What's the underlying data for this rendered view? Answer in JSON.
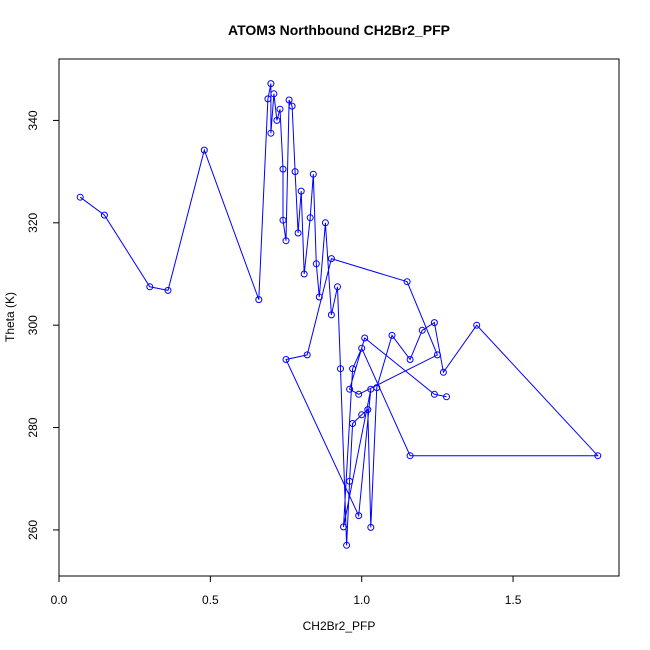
{
  "chart_data": {
    "type": "line",
    "title": "ATOM3 Northbound CH2Br2_PFP",
    "xlabel": "CH2Br2_PFP",
    "ylabel": "Theta (K)",
    "xlim": [
      0.0,
      1.85
    ],
    "ylim": [
      251,
      352
    ],
    "xticks": [
      "0.0",
      "0.5",
      "1.0",
      "1.5"
    ],
    "yticks": [
      "260",
      "280",
      "300",
      "320",
      "340"
    ],
    "series": [
      {
        "color": "#0000ff",
        "marker": "open-circle",
        "x": [
          0.07,
          0.15,
          0.3,
          0.36,
          0.48,
          0.66,
          0.69,
          0.7,
          0.7,
          0.71,
          0.72,
          0.73,
          0.74,
          0.74,
          0.75,
          0.76,
          0.77,
          0.78,
          0.79,
          0.8,
          0.81,
          0.83,
          0.84,
          0.85,
          0.86,
          0.88,
          0.9,
          0.92,
          0.93,
          0.95,
          0.96,
          0.97,
          1.0,
          1.02,
          1.03,
          1.05,
          1.1,
          1.16,
          1.2,
          1.24,
          1.27,
          1.38,
          1.78,
          1.16,
          1.0,
          0.97,
          0.94,
          1.03,
          0.99,
          0.75,
          0.82,
          0.9,
          1.15,
          1.25,
          0.99,
          0.96,
          1.01,
          1.24,
          1.28
        ],
        "y": [
          325,
          321.5,
          307.5,
          306.8,
          334.2,
          305.0,
          344.2,
          347.2,
          337.5,
          345.2,
          340.0,
          342.2,
          330.5,
          320.5,
          316.5,
          344.0,
          342.8,
          330.0,
          318.0,
          326.2,
          310.0,
          321.0,
          329.5,
          312.0,
          305.5,
          320.0,
          302.0,
          307.5,
          291.5,
          257.0,
          269.5,
          280.8,
          282.5,
          283.5,
          260.5,
          287.8,
          298.0,
          293.3,
          299.0,
          300.5,
          290.8,
          300.0,
          274.5,
          274.5,
          295.5,
          291.5,
          260.6,
          287.5,
          262.8,
          293.3,
          294.2,
          313.0,
          308.5,
          294.2,
          286.5,
          287.5,
          297.5,
          286.5,
          286.0
        ]
      }
    ],
    "grid": false,
    "legend": "none"
  }
}
